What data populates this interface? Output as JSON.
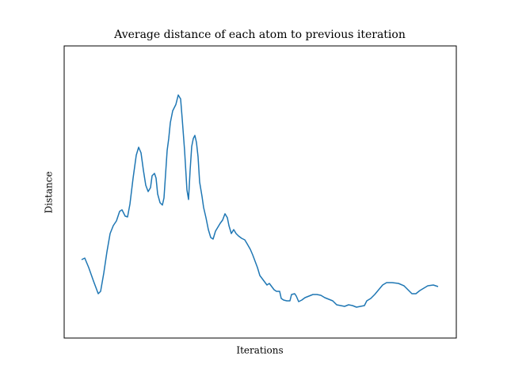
{
  "chart_data": {
    "type": "line",
    "title": "Average distance of each atom to previous iteration",
    "xlabel": "Iterations",
    "ylabel": "Distance",
    "x": [
      0,
      4,
      9,
      15,
      21,
      24,
      28,
      32,
      36,
      40,
      44,
      48,
      51,
      55,
      58,
      61,
      65,
      69,
      72,
      75,
      78,
      81,
      84,
      87,
      89,
      92,
      94,
      96,
      99,
      102,
      104,
      106,
      108,
      110,
      112,
      115,
      119,
      122,
      125,
      127,
      130,
      133,
      135,
      137,
      139,
      141,
      143,
      145,
      147,
      149,
      152,
      154,
      157,
      160,
      163,
      166,
      169,
      172,
      175,
      178,
      181,
      184,
      186,
      189,
      192,
      195,
      198,
      202,
      206,
      209,
      213,
      216,
      219,
      222,
      225,
      228,
      231,
      234,
      237,
      240,
      243,
      246,
      250,
      252,
      255,
      259,
      263,
      265,
      269,
      271,
      274,
      278,
      282,
      287,
      292,
      297,
      302,
      307,
      312,
      317,
      322,
      327,
      332,
      337,
      342,
      347,
      352,
      357,
      360,
      365,
      370,
      375,
      380,
      385,
      392,
      400,
      407,
      412,
      417,
      422,
      427,
      432,
      437,
      444,
      450
    ],
    "series": [
      {
        "color": "#1f77b4",
        "values": [
          99,
          101,
          89,
          72,
          56,
          59,
          82,
          109,
          132,
          142,
          148,
          160,
          162,
          154,
          153,
          169,
          202,
          231,
          241,
          234,
          212,
          193,
          185,
          190,
          205,
          208,
          202,
          182,
          171,
          168,
          177,
          207,
          237,
          252,
          272,
          287,
          295,
          307,
          302,
          277,
          237,
          187,
          175,
          212,
          242,
          252,
          256,
          247,
          229,
          197,
          179,
          165,
          152,
          137,
          127,
          125,
          135,
          140,
          145,
          149,
          157,
          152,
          142,
          132,
          137,
          132,
          129,
          126,
          124,
          119,
          112,
          105,
          97,
          89,
          79,
          75,
          71,
          67,
          69,
          65,
          61,
          59,
          59,
          50,
          48,
          47,
          47,
          55,
          56,
          53,
          46,
          48,
          51,
          53,
          55,
          55,
          54,
          51,
          49,
          47,
          42,
          41,
          40,
          42,
          41,
          39,
          40,
          41,
          47,
          50,
          55,
          61,
          67,
          70,
          70,
          69,
          66,
          61,
          56,
          56,
          60,
          63,
          66,
          67,
          65
        ]
      }
    ],
    "xlim": [
      -22,
      473
    ],
    "ylim": [
      0,
      369
    ]
  }
}
